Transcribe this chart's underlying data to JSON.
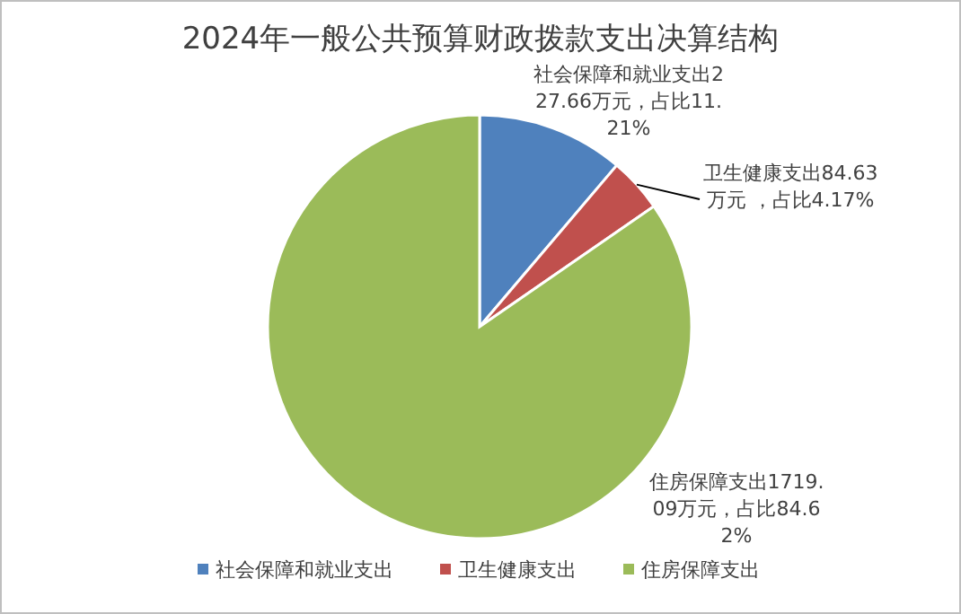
{
  "chart_data": {
    "type": "pie",
    "title": "2024年一般公共预算财政拨款支出决算结构",
    "categories": [
      "社会保障和就业支出",
      "卫生健康支出",
      "住房保障支出"
    ],
    "values": [
      227.66,
      84.63,
      1719.09
    ],
    "colors": [
      "#4f81bd",
      "#c0504d",
      "#9bbb59"
    ],
    "value_labels": [
      "社会保障和就业支出227.66万元，占比11.21%",
      "卫生健康支出84.63万元 ，占比4.17%",
      "住房保障支出1719.09万元，占比84.62%"
    ],
    "legend": "bottom"
  }
}
